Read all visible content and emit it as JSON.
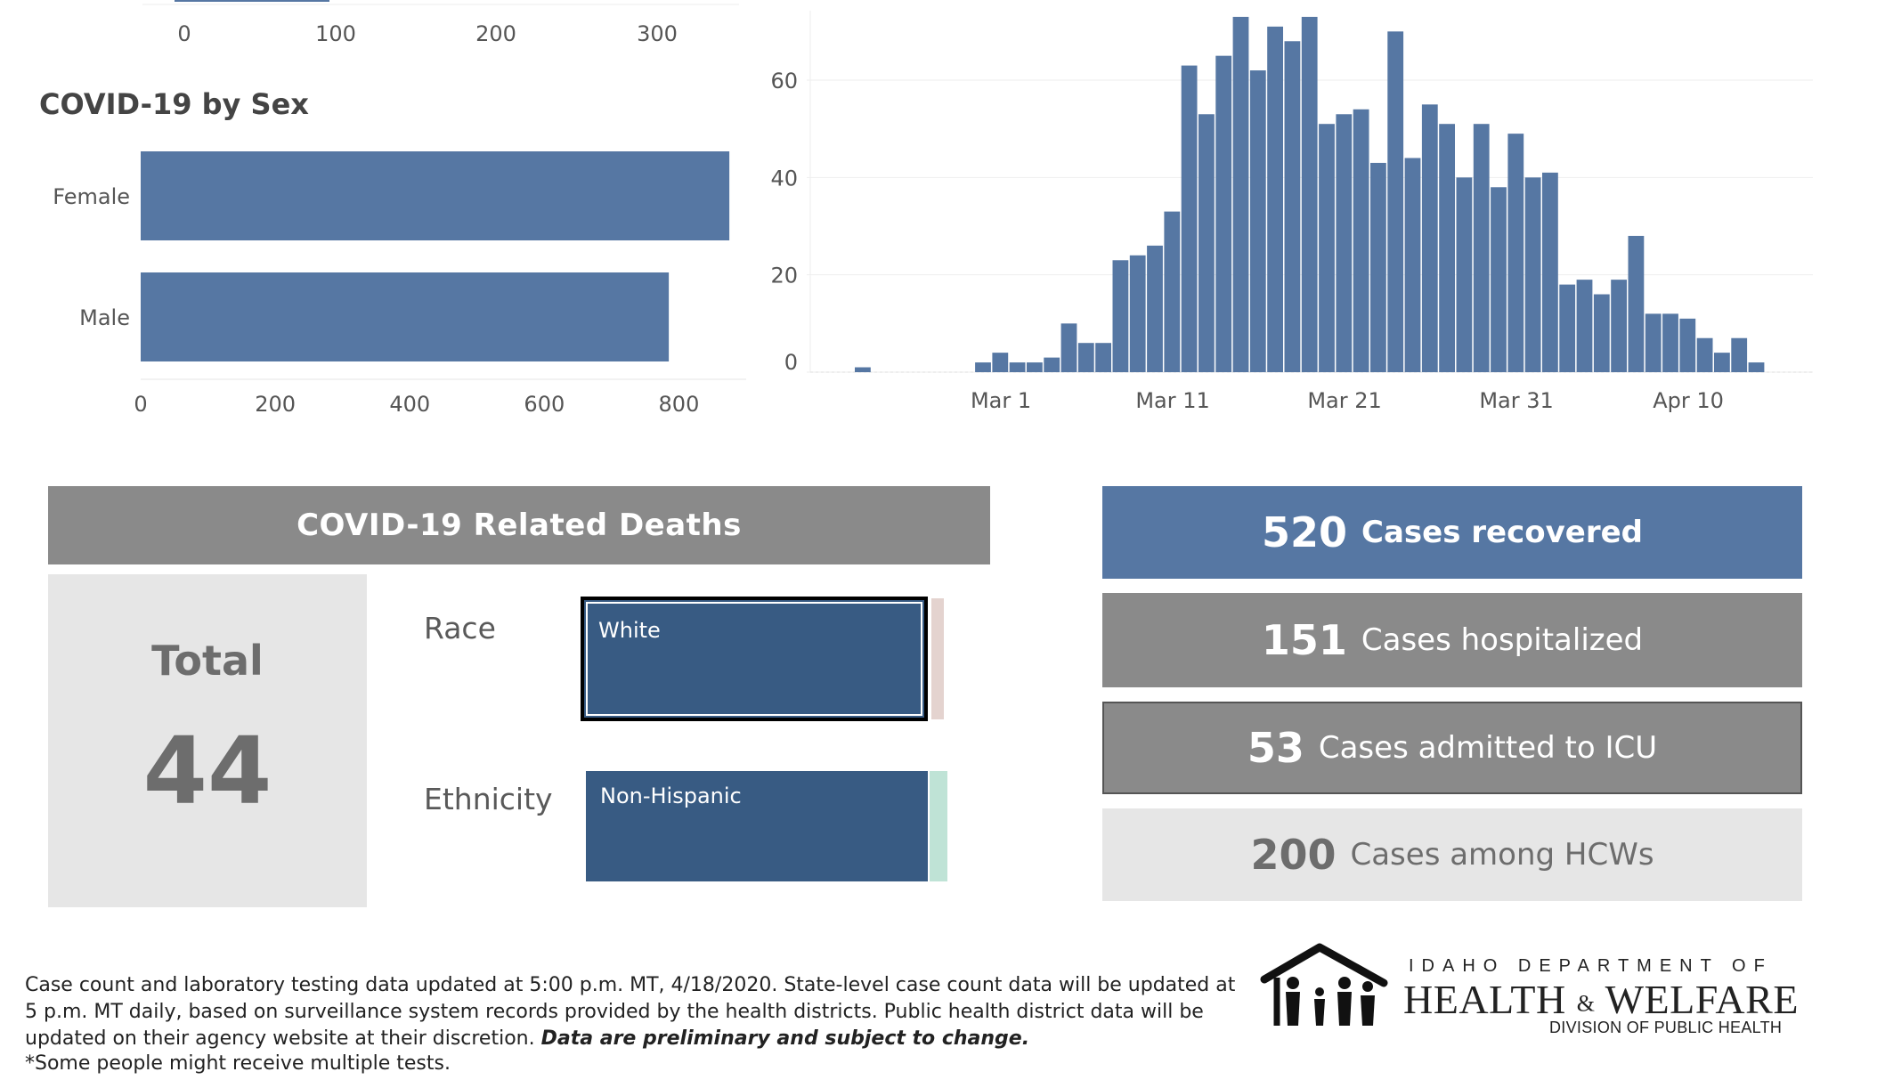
{
  "top_axis": {
    "ticks": [
      "0",
      "100",
      "200",
      "300"
    ]
  },
  "sex_chart": {
    "title": "COVID-19 by Sex",
    "chart_data": {
      "type": "bar",
      "orientation": "horizontal",
      "categories": [
        "Female",
        "Male"
      ],
      "values": [
        875,
        785
      ],
      "xlim": [
        0,
        900
      ],
      "x_ticks": [
        "0",
        "200",
        "400",
        "600",
        "800"
      ],
      "color": "#5677a3"
    }
  },
  "onset_chart": {
    "chart_data": {
      "type": "bar",
      "x_ticks": [
        "Mar 1",
        "Mar 11",
        "Mar 21",
        "Mar 31",
        "Apr 10"
      ],
      "y_ticks": [
        "0",
        "20",
        "40",
        "60"
      ],
      "ylim": [
        0,
        75
      ],
      "start_date": "Feb 22",
      "values": [
        1,
        0,
        0,
        0,
        0,
        0,
        0,
        2,
        4,
        2,
        2,
        3,
        10,
        6,
        6,
        23,
        24,
        26,
        33,
        63,
        53,
        65,
        73,
        62,
        71,
        68,
        73,
        51,
        53,
        54,
        43,
        70,
        44,
        55,
        51,
        40,
        51,
        38,
        49,
        40,
        41,
        18,
        19,
        16,
        19,
        28,
        12,
        12,
        11,
        7,
        4,
        7,
        2
      ],
      "color": "#5677a3",
      "grid": true
    }
  },
  "deaths": {
    "header": "COVID-19 Related Deaths",
    "total_label": "Total",
    "total_value": "44",
    "race_label": "Race",
    "race_main": "White",
    "ethnicity_label": "Ethnicity",
    "ethnicity_main": "Non-Hispanic"
  },
  "stats": {
    "recovered": {
      "value": "520",
      "label": "Cases recovered"
    },
    "hospitalized": {
      "value": "151",
      "label": "Cases hospitalized"
    },
    "icu": {
      "value": "53",
      "label": "Cases admitted to ICU"
    },
    "hcw": {
      "value": "200",
      "label": "Cases among HCWs"
    }
  },
  "footnote": {
    "text": "Case count and laboratory testing data updated at 5:00 p.m. MT, 4/18/2020. State-level case count data will be updated at 5 p.m. MT daily, based on surveillance system records provided by the health districts. Public health district data will be updated on their agency website at their discretion. ",
    "emphasis": "Data are preliminary and subject to change.",
    "note": "*Some people might receive multiple tests."
  },
  "logo": {
    "line1": "IDAHO DEPARTMENT OF",
    "line2a": "HEALTH",
    "line2amp": "&",
    "line2b": "WELFARE",
    "line3": "DIVISION OF PUBLIC HEALTH"
  }
}
